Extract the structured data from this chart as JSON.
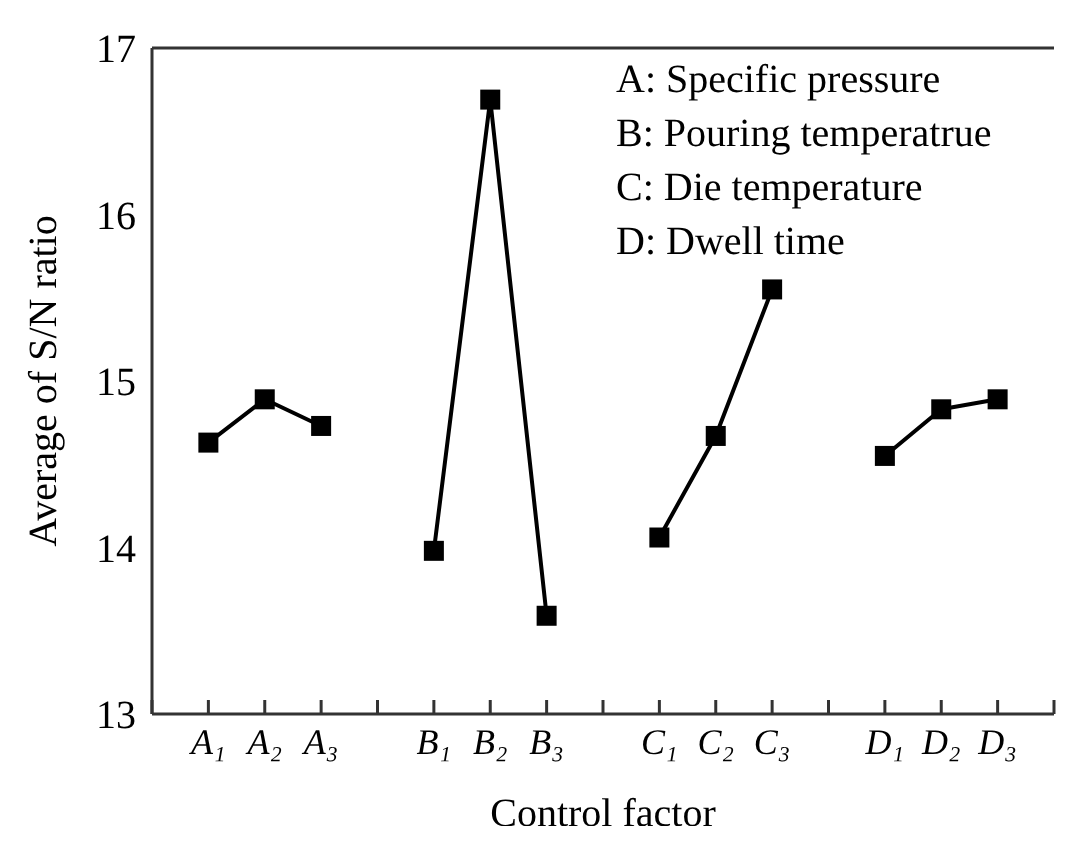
{
  "chart_data": {
    "type": "line",
    "xlabel": "Control factor",
    "ylabel": "Average of S/N ratio",
    "categories": [
      null,
      "A₁",
      "A₂",
      "A₃",
      null,
      "B₁",
      "B₂",
      "B₃",
      null,
      "C₁",
      "C₂",
      "C₃",
      null,
      "D₁",
      "D₂",
      "D₃",
      null
    ],
    "series": [
      {
        "color": "#000000",
        "values": [
          null,
          14.63,
          14.89,
          14.73,
          null,
          null,
          null,
          null,
          null,
          null,
          null,
          null,
          null,
          null,
          null,
          null,
          null
        ]
      },
      {
        "color": "#000000",
        "values": [
          null,
          null,
          null,
          null,
          null,
          13.98,
          16.69,
          13.59,
          null,
          null,
          null,
          null,
          null,
          null,
          null,
          null,
          null
        ]
      },
      {
        "color": "#000000",
        "values": [
          null,
          null,
          null,
          null,
          null,
          null,
          null,
          null,
          null,
          14.06,
          14.67,
          15.55,
          null,
          null,
          null,
          null,
          null
        ]
      },
      {
        "color": "#000000",
        "values": [
          null,
          null,
          null,
          null,
          null,
          null,
          null,
          null,
          null,
          null,
          null,
          null,
          null,
          14.55,
          14.83,
          14.89,
          null
        ]
      }
    ],
    "ylim": [
      13,
      17
    ],
    "yticks": [
      13,
      14,
      15,
      16,
      17
    ],
    "marker": "square",
    "line_style": "solid",
    "grid": false,
    "legend": false,
    "annotations": [
      "A: Specific pressure",
      "B: Pouring temperatrue",
      "C: Die temperature",
      "D: Dwell time"
    ]
  }
}
